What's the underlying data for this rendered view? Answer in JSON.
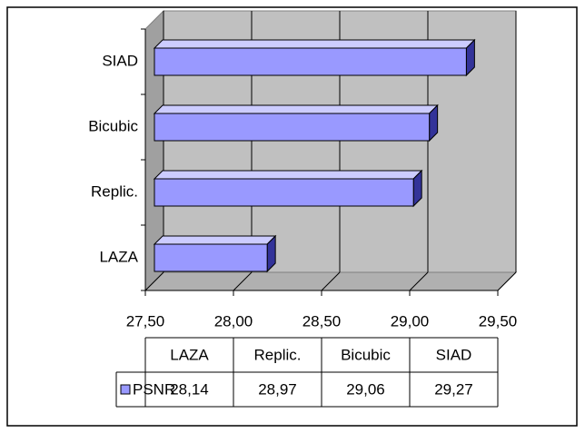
{
  "chart_data": {
    "type": "bar",
    "orientation": "horizontal",
    "categories": [
      "LAZA",
      "Replic.",
      "Bicubic",
      "SIAD"
    ],
    "series": [
      {
        "name": "PSNR",
        "color": "#9999ff",
        "values": [
          28.14,
          28.97,
          29.06,
          29.27
        ],
        "value_labels": [
          "28,14",
          "28,97",
          "29,06",
          "29,27"
        ]
      }
    ],
    "xlim": [
      27.5,
      29.5
    ],
    "xticks": [
      {
        "value": 27.5,
        "label": "27,50"
      },
      {
        "value": 28.0,
        "label": "28,00"
      },
      {
        "value": 28.5,
        "label": "28,50"
      },
      {
        "value": 29.0,
        "label": "29,00"
      },
      {
        "value": 29.5,
        "label": "29,50"
      }
    ],
    "grid": true,
    "data_table": true
  }
}
